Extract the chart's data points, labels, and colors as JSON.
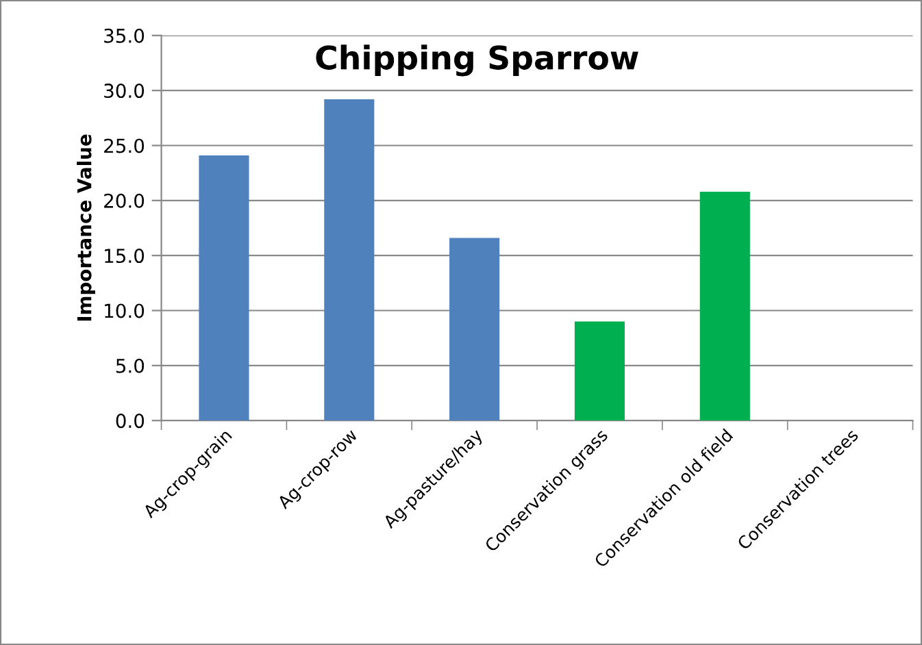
{
  "chart_data": {
    "type": "bar",
    "title": "Chipping Sparrow",
    "ylabel": "Importance Value",
    "categories": [
      "Ag-crop-grain",
      "Ag-crop-row",
      "Ag-pasture/hay",
      "Conservation grass",
      "Conservation old field",
      "Conservation trees"
    ],
    "values": [
      24.1,
      29.2,
      16.6,
      9.0,
      20.8,
      0
    ],
    "colors": [
      "#4f81bd",
      "#4f81bd",
      "#4f81bd",
      "#00b050",
      "#00b050",
      "#00b050"
    ],
    "ylim": [
      0,
      35
    ],
    "yticks": [
      {
        "value": 0,
        "label": "0.0"
      },
      {
        "value": 5,
        "label": "5.0"
      },
      {
        "value": 10,
        "label": "10.0"
      },
      {
        "value": 15,
        "label": "15.0"
      },
      {
        "value": 20,
        "label": "20.0"
      },
      {
        "value": 25,
        "label": "25.0"
      },
      {
        "value": 30,
        "label": "30.0"
      },
      {
        "value": 35,
        "label": "35.0"
      }
    ],
    "grid": "y",
    "legend": false
  }
}
